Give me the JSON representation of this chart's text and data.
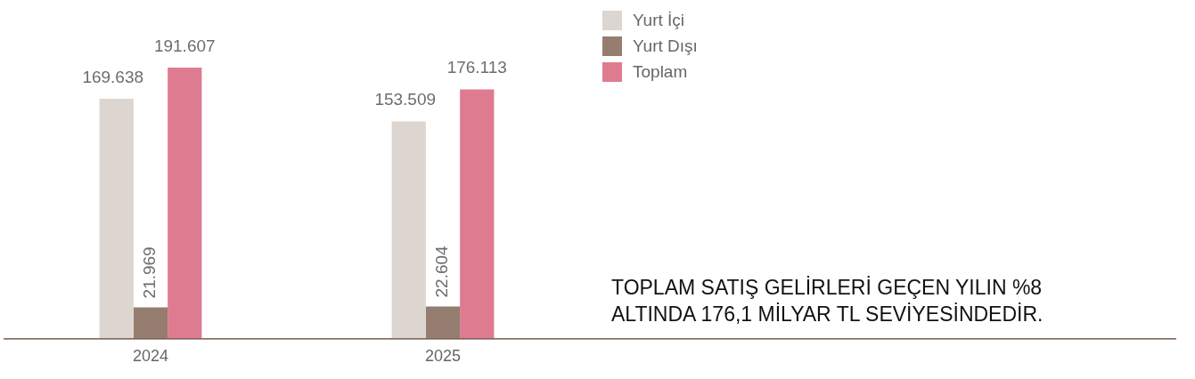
{
  "chart_data": {
    "type": "bar",
    "categories": [
      "2024",
      "2025"
    ],
    "series": [
      {
        "name": "Yurt İçi",
        "color": "#ddd5cf",
        "values": [
          169638,
          153509
        ],
        "value_labels": [
          "169.638",
          "153.509"
        ]
      },
      {
        "name": "Yurt Dışı",
        "color": "#957d70",
        "values": [
          21969,
          22604
        ],
        "value_labels": [
          "21.969",
          "22.604"
        ]
      },
      {
        "name": "Toplam",
        "color": "#df7b91",
        "values": [
          191607,
          176113
        ],
        "value_labels": [
          "191.607",
          "176.113"
        ]
      }
    ],
    "legend": "top",
    "grid": false,
    "annotations": [
      "TOPLAM SATIŞ GELİRLERİ GEÇEN YILIN %8\nALTINDA 176,1 MİLYAR TL SEVİYESİNDEDİR."
    ]
  }
}
